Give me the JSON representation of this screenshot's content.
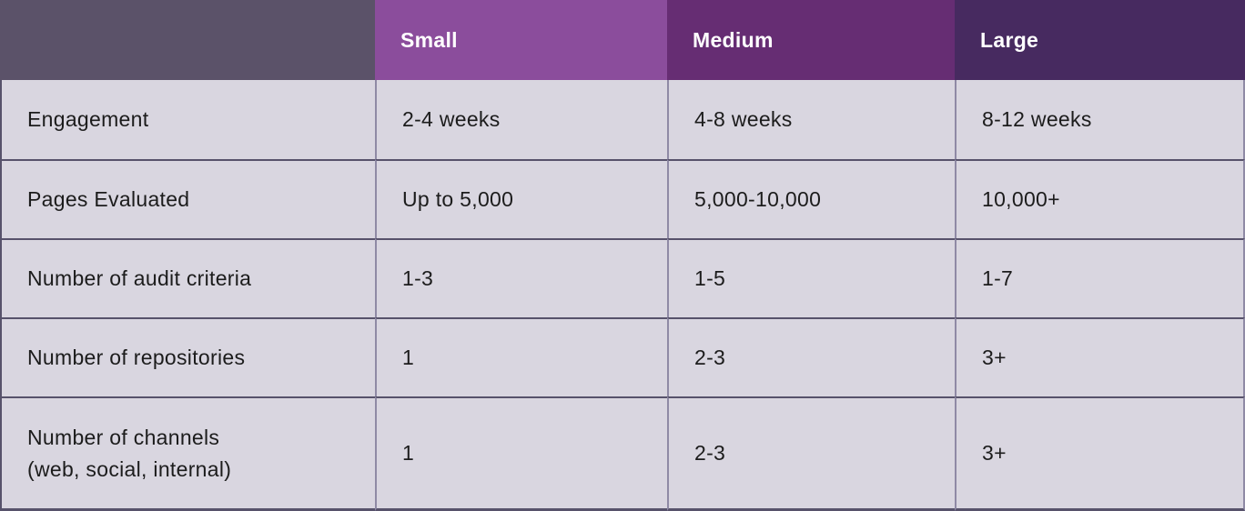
{
  "table": {
    "columns": [
      "",
      "Small",
      "Medium",
      "Large"
    ],
    "rows": [
      {
        "label": "Engagement",
        "values": [
          "2-4 weeks",
          "4-8 weeks",
          "8-12 weeks"
        ]
      },
      {
        "label": "Pages Evaluated",
        "values": [
          "Up to 5,000",
          "5,000-10,000",
          "10,000+"
        ]
      },
      {
        "label": "Number of audit criteria",
        "values": [
          "1-3",
          "1-5",
          "1-7"
        ]
      },
      {
        "label": "Number of repositories",
        "values": [
          "1",
          "2-3",
          "3+"
        ]
      },
      {
        "label": "Number of channels\n(web, social, internal)",
        "values": [
          "1",
          "2-3",
          "3+"
        ]
      }
    ]
  },
  "colors": {
    "header_col1_bg": "#5b5269",
    "header_small_bg": "#8b4d9c",
    "header_medium_bg": "#662d73",
    "header_large_bg": "#472a60",
    "cell_bg": "#d9d6e0",
    "row_border": "#57526b",
    "column_border": "#8f8aa5",
    "header_text": "#ffffff",
    "body_text": "#1c1c1c"
  }
}
